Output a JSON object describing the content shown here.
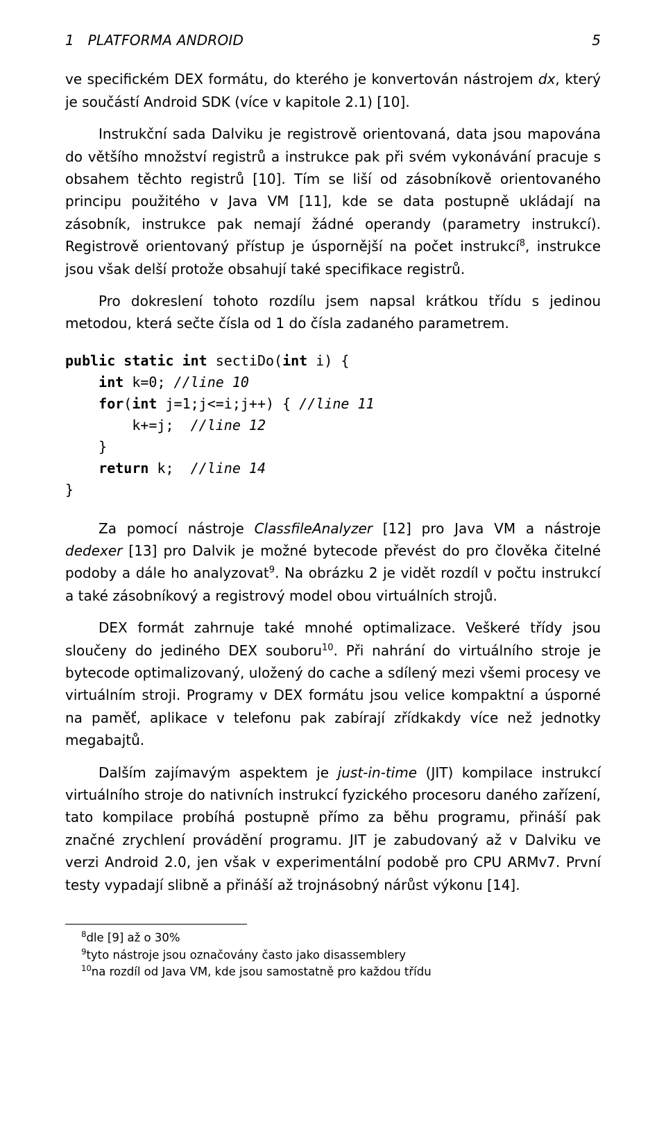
{
  "header": {
    "section_number": "1",
    "section_title": "PLATFORMA ANDROID",
    "page_number": "5"
  },
  "p0_a": "ve specifickém DEX formátu, do kterého je konvertován nástrojem ",
  "p0_dx": "dx",
  "p0_b": ", který je součástí Android SDK (více v kapitole 2.1) [10].",
  "p1_a": "Instrukční sada Dalviku je registrově orientovaná, data jsou mapována do většího množství registrů a instrukce pak při svém vykonávání pracuje s obsahem těchto registrů [10]. Tím se liší od zásobníkově orientovaného principu použitého v Java VM [11], kde se data postupně ukládají na zásobník, instrukce pak nemají žádné operandy (parametry instrukcí). Registrově orientovaný přístup je úspornější na počet instrukcí",
  "p1_fn8": "8",
  "p1_b": ", instrukce jsou však delší protože obsahují také specifikace registrů.",
  "p2": "Pro dokreslení tohoto rozdílu jsem napsal krátkou třídu s jedinou metodou, která sečte čísla od 1 do čísla zadaného parametrem.",
  "code": {
    "kw_public": "public",
    "kw_static": "static",
    "kw_int": "int",
    "fn_name": " sectiDo(",
    "param": " i) {",
    "l2a": " k=0; ",
    "l2c": "//line 10",
    "kw_for": "for",
    "l3a": "(",
    "l3b": " j=1;j<=i;j++) { ",
    "l3c": "//line 11",
    "l4a": "        k+=j;  ",
    "l4c": "//line 12",
    "l5": "    }",
    "kw_return": "return",
    "l6a": " k;  ",
    "l6c": "//line 14",
    "l7": "}"
  },
  "p3_a": "Za pomocí nástroje ",
  "p3_cfa": "ClassfileAnalyzer",
  "p3_b": " [12] pro Java VM a nástroje ",
  "p3_ded": "dedexer",
  "p3_c": " [13] pro Dalvik je možné bytecode převést do pro člověka čitelné podoby a dále ho analyzovat",
  "p3_fn9": "9",
  "p3_d": ". Na obrázku 2 je vidět rozdíl v počtu instrukcí a také zásobníkový a registrový model obou virtuálních strojů.",
  "p4_a": "DEX formát zahrnuje také mnohé optimalizace. Veškeré třídy jsou sloučeny do jediného DEX souboru",
  "p4_fn10": "10",
  "p4_b": ". Při nahrání do virtuálního stroje je bytecode optimalizovaný, uložený do cache a sdílený mezi všemi procesy ve virtuálním stroji. Programy v DEX formátu jsou velice kompaktní a úsporné na paměť, aplikace v telefonu pak zabírají zřídkakdy více než jednotky megabajtů.",
  "p5_a": "Dalším zajímavým aspektem je ",
  "p5_jit": "just-in-time",
  "p5_b": " (JIT) kompilace instrukcí virtuálního stroje do nativních instrukcí fyzického procesoru daného zařízení, tato kompilace probíhá postupně přímo za běhu programu, přináší pak značné zrychlení provádění programu. JIT je zabudovaný až v Dalviku ve verzi Android 2.0, jen však v experimentální podobě pro CPU ARMv7. První testy vypadají slibně a přináší až trojnásobný nárůst výkonu [14].",
  "footnotes": {
    "f8_n": "8",
    "f8": "dle [9] až o 30%",
    "f9_n": "9",
    "f9": "tyto nástroje jsou označovány často jako disassemblery",
    "f10_n": "10",
    "f10": "na rozdíl od Java VM, kde jsou samostatně pro každou třídu"
  }
}
